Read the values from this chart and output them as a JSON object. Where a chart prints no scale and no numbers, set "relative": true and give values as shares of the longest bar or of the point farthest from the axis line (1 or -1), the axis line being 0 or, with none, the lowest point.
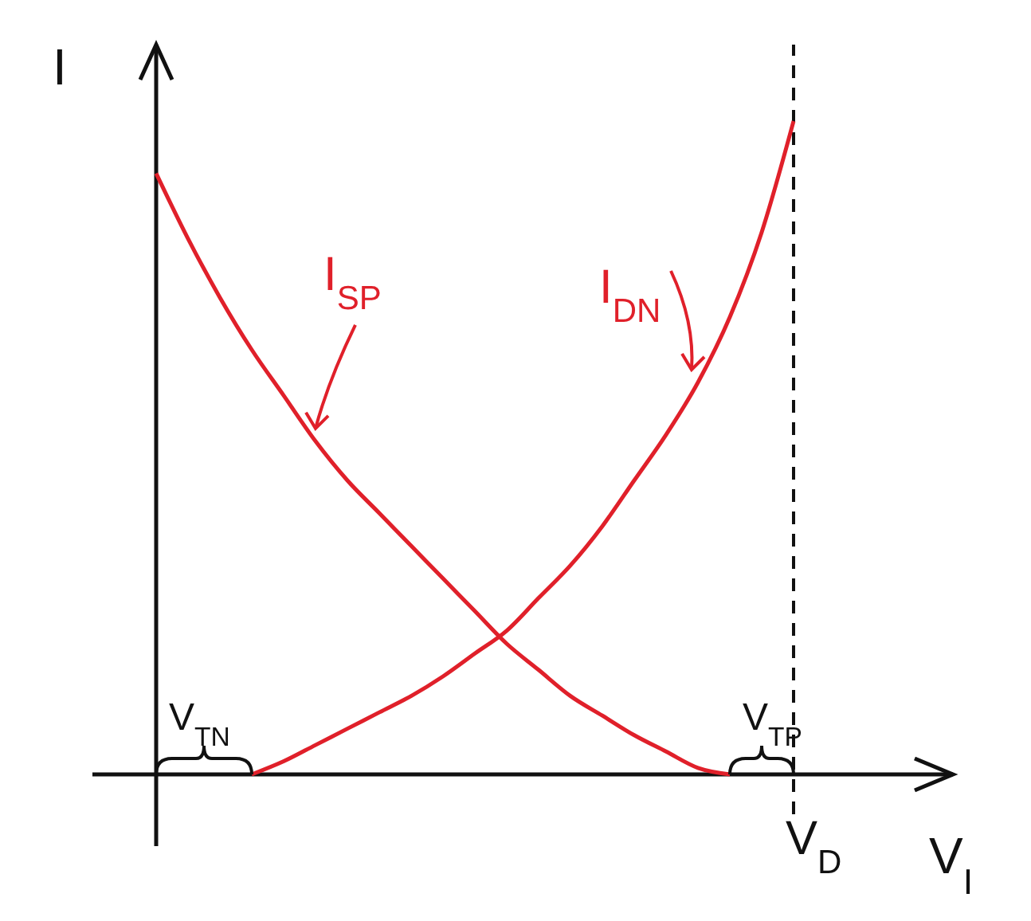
{
  "chart_data": {
    "type": "line",
    "relative": true,
    "ylabel": "I",
    "xlabel": "V$_{I}$",
    "categories": [
      null,
      null,
      null,
      null,
      null,
      null,
      null,
      null,
      null,
      null,
      null,
      null,
      null,
      null,
      null,
      null,
      null,
      null,
      null,
      null,
      null
    ],
    "series": [
      {
        "name": "I$_{SP}$",
        "color": "#e0202a",
        "values": [
          0.92,
          0.82,
          0.73,
          0.65,
          0.58,
          0.51,
          0.45,
          0.4,
          0.35,
          0.3,
          0.25,
          0.2,
          0.16,
          0.12,
          0.09,
          0.06,
          0.035,
          0.01,
          0,
          null,
          null
        ]
      },
      {
        "name": "I$_{DN}$",
        "color": "#e0202a",
        "values": [
          null,
          null,
          null,
          0,
          0.02,
          0.045,
          0.07,
          0.095,
          0.12,
          0.15,
          0.185,
          0.22,
          0.27,
          0.32,
          0.38,
          0.45,
          0.52,
          0.6,
          0.7,
          0.83,
          1
        ]
      }
    ],
    "annotations": [
      "V$_{TN}$",
      "V$_{TP}$",
      "V$_{D}$"
    ]
  }
}
